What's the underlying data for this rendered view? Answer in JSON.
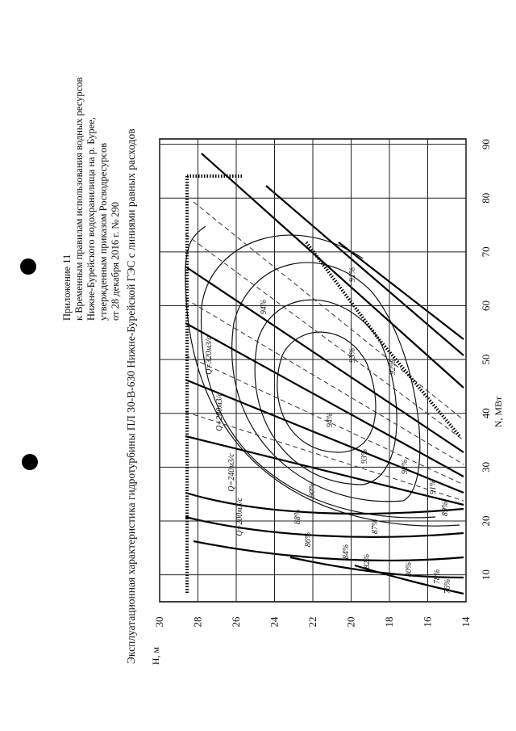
{
  "header": {
    "lines": [
      "Приложение 11",
      "к Временным правилам использования водных ресурсов",
      "Нижне-Бурейского водохранилища на р. Бурее,",
      "утвержденным приказом Росводресурсов",
      "от 28 декабря 2016 г. № 290"
    ]
  },
  "chart_data": {
    "type": "hill",
    "title": "Эксплуатационная характеристика гидротурбины ПЛ 30-В-630 Нижне-Бурейской ГЭС с линиями равных расходов",
    "x_label": "N, МВт",
    "y_label": "H, м",
    "xlim": [
      5,
      91
    ],
    "xticks": [
      10,
      20,
      30,
      40,
      50,
      60,
      70,
      80,
      90
    ],
    "ylim": [
      14,
      30
    ],
    "yticks": [
      14,
      16,
      18,
      20,
      22,
      24,
      26,
      28,
      30
    ],
    "grid": true,
    "annotations": [
      "94%",
      "93%",
      "92%",
      "91%",
      "90%",
      "89%",
      "88%",
      "87%",
      "86%",
      "84%",
      "82%",
      "80%",
      "78%",
      "76%",
      "94%",
      "93%",
      "92%",
      "91%",
      "Q=200м3/с",
      "Q=240м3/с",
      "Q=280м3/с",
      "Q=320м3/с"
    ]
  }
}
